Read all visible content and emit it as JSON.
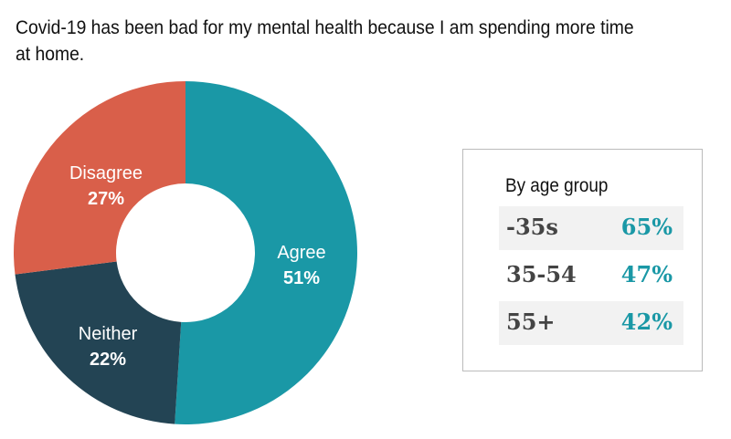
{
  "title": "Covid-19 has been bad for my mental health because I am spending more time at home.",
  "chart_data": {
    "type": "pie",
    "variant": "donut",
    "title": "Covid-19 has been bad for my mental health because I am spending more time at home.",
    "slices": [
      {
        "label": "Agree",
        "value": 51,
        "display": "51%",
        "color": "#1a98a6"
      },
      {
        "label": "Neither",
        "value": 22,
        "display": "22%",
        "color": "#234454"
      },
      {
        "label": "Disagree",
        "value": 27,
        "display": "27%",
        "color": "#d95f4a"
      }
    ]
  },
  "age_box": {
    "title": "By age group",
    "rows": [
      {
        "label": "-35s",
        "value": "65%"
      },
      {
        "label": "35-54",
        "value": "47%"
      },
      {
        "label": "55+",
        "value": "42%"
      }
    ]
  }
}
